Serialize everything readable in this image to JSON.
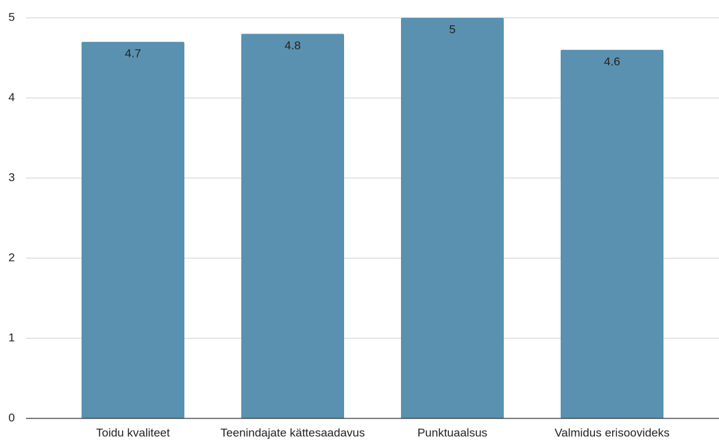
{
  "chart_data": {
    "type": "bar",
    "categories": [
      "Toidu kvaliteet",
      "Teenindajate kättesaadavus",
      "Punktuaalsus",
      "Valmidus erisoovideks"
    ],
    "values": [
      4.7,
      4.8,
      5,
      4.6
    ],
    "color": "#5a91b0",
    "ylim": [
      0,
      5
    ],
    "yticks": [
      0,
      1,
      2,
      3,
      4,
      5
    ],
    "grid": true
  }
}
